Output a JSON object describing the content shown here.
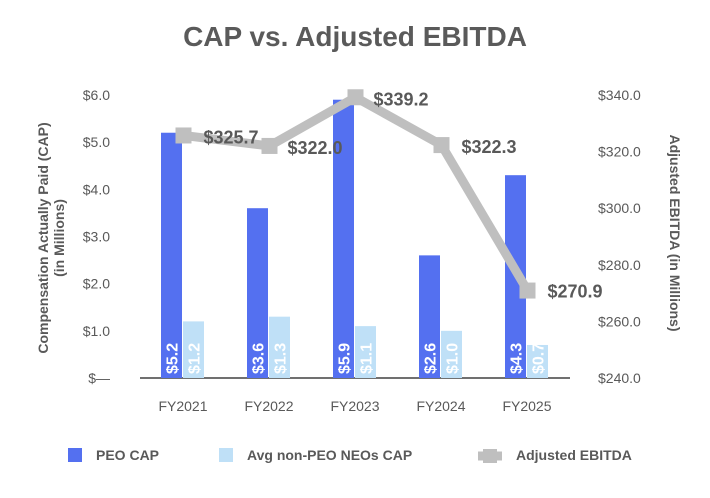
{
  "chart_data": {
    "type": "bar",
    "title": "CAP vs. Adjusted EBITDA",
    "categories": [
      "FY2021",
      "FY2022",
      "FY2023",
      "FY2024",
      "FY2025"
    ],
    "ylabel": "Compensation Actually Paid (CAP)",
    "ylabel_sub": "(in Millions)",
    "y2label": "Adjusted EBITDA (in Millions)",
    "ylim": [
      0,
      6
    ],
    "y_ticks": [
      {
        "value": 0,
        "label": "$—"
      },
      {
        "value": 1,
        "label": "$1.0"
      },
      {
        "value": 2,
        "label": "$2.0"
      },
      {
        "value": 3,
        "label": "$3.0"
      },
      {
        "value": 4,
        "label": "$4.0"
      },
      {
        "value": 5,
        "label": "$5.0"
      },
      {
        "value": 6,
        "label": "$6.0"
      }
    ],
    "y2lim": [
      240,
      340
    ],
    "y2_ticks": [
      {
        "value": 240,
        "label": "$240.0"
      },
      {
        "value": 260,
        "label": "$260.0"
      },
      {
        "value": 280,
        "label": "$280.0"
      },
      {
        "value": 300,
        "label": "$300.0"
      },
      {
        "value": 320,
        "label": "$320.0"
      },
      {
        "value": 340,
        "label": "$340.0"
      }
    ],
    "series": [
      {
        "name": "PEO CAP",
        "type": "bar",
        "axis": "left",
        "color": "#5470f0",
        "values": [
          5.2,
          3.6,
          5.9,
          2.6,
          4.3
        ],
        "labels": [
          "$5.2",
          "$3.6",
          "$5.9",
          "$2.6",
          "$4.3"
        ]
      },
      {
        "name": "Avg non-PEO NEOs CAP",
        "type": "bar",
        "axis": "left",
        "color": "#bfe0f7",
        "values": [
          1.2,
          1.3,
          1.1,
          1.0,
          0.7
        ],
        "labels": [
          "$1.2",
          "$1.3",
          "$1.1",
          "$1.0",
          "$0.7"
        ]
      },
      {
        "name": "Adjusted EBITDA",
        "type": "line",
        "axis": "right",
        "color": "#bfbfbf",
        "values": [
          325.7,
          322.0,
          339.2,
          322.3,
          270.9
        ],
        "labels": [
          "$325.7",
          "$322.0",
          "$339.2",
          "$322.3",
          "$270.9"
        ]
      }
    ],
    "legend": "bottom"
  }
}
